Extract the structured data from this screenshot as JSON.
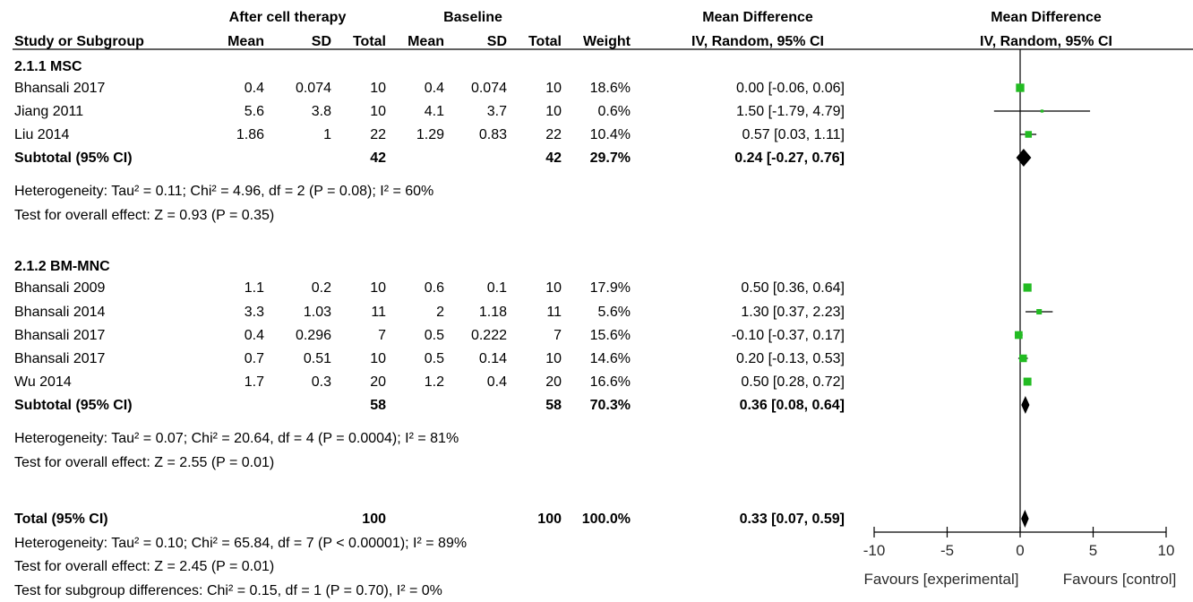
{
  "header": {
    "group1": "After cell therapy",
    "group2": "Baseline",
    "md_col": "Mean Difference",
    "plot_col": "Mean Difference",
    "study": "Study or Subgroup",
    "mean1": "Mean",
    "sd1": "SD",
    "total1": "Total",
    "mean2": "Mean",
    "sd2": "SD",
    "total2": "Total",
    "weight": "Weight",
    "method": "IV, Random, 95% CI",
    "plot_method": "IV, Random, 95% CI"
  },
  "subgroups": [
    {
      "title": "2.1.1 MSC",
      "studies": [
        {
          "name": "Bhansali 2017",
          "mean1": "0.4",
          "sd1": "0.074",
          "n1": "10",
          "mean2": "0.4",
          "sd2": "0.074",
          "n2": "10",
          "weight": "18.6%",
          "ci": "0.00 [-0.06, 0.06]"
        },
        {
          "name": "Jiang 2011",
          "mean1": "5.6",
          "sd1": "3.8",
          "n1": "10",
          "mean2": "4.1",
          "sd2": "3.7",
          "n2": "10",
          "weight": "0.6%",
          "ci": "1.50 [-1.79, 4.79]"
        },
        {
          "name": "Liu 2014",
          "mean1": "1.86",
          "sd1": "1",
          "n1": "22",
          "mean2": "1.29",
          "sd2": "0.83",
          "n2": "22",
          "weight": "10.4%",
          "ci": "0.57 [0.03, 1.11]"
        }
      ],
      "subtotal": {
        "label": "Subtotal (95% CI)",
        "n1": "42",
        "n2": "42",
        "weight": "29.7%",
        "ci": "0.24 [-0.27, 0.76]"
      },
      "heterogeneity": "Heterogeneity: Tau² = 0.11; Chi² = 4.96, df = 2 (P = 0.08); I² = 60%",
      "overall": "Test for overall effect: Z = 0.93 (P = 0.35)"
    },
    {
      "title": "2.1.2 BM-MNC",
      "studies": [
        {
          "name": "Bhansali 2009",
          "mean1": "1.1",
          "sd1": "0.2",
          "n1": "10",
          "mean2": "0.6",
          "sd2": "0.1",
          "n2": "10",
          "weight": "17.9%",
          "ci": "0.50 [0.36, 0.64]"
        },
        {
          "name": "Bhansali 2014",
          "mean1": "3.3",
          "sd1": "1.03",
          "n1": "11",
          "mean2": "2",
          "sd2": "1.18",
          "n2": "11",
          "weight": "5.6%",
          "ci": "1.30 [0.37, 2.23]"
        },
        {
          "name": "Bhansali 2017",
          "mean1": "0.4",
          "sd1": "0.296",
          "n1": "7",
          "mean2": "0.5",
          "sd2": "0.222",
          "n2": "7",
          "weight": "15.6%",
          "ci": "-0.10 [-0.37, 0.17]"
        },
        {
          "name": "Bhansali 2017",
          "mean1": "0.7",
          "sd1": "0.51",
          "n1": "10",
          "mean2": "0.5",
          "sd2": "0.14",
          "n2": "10",
          "weight": "14.6%",
          "ci": "0.20 [-0.13, 0.53]"
        },
        {
          "name": "Wu 2014",
          "mean1": "1.7",
          "sd1": "0.3",
          "n1": "20",
          "mean2": "1.2",
          "sd2": "0.4",
          "n2": "20",
          "weight": "16.6%",
          "ci": "0.50 [0.28, 0.72]"
        }
      ],
      "subtotal": {
        "label": "Subtotal (95% CI)",
        "n1": "58",
        "n2": "58",
        "weight": "70.3%",
        "ci": "0.36 [0.08, 0.64]"
      },
      "heterogeneity": "Heterogeneity: Tau² = 0.07; Chi² = 20.64, df = 4 (P = 0.0004); I² = 81%",
      "overall": "Test for overall effect: Z = 2.55 (P = 0.01)"
    }
  ],
  "total": {
    "label": "Total (95% CI)",
    "n1": "100",
    "n2": "100",
    "weight": "100.0%",
    "ci": "0.33 [0.07, 0.59]",
    "heterogeneity": "Heterogeneity: Tau² = 0.10; Chi² = 65.84, df = 7 (P < 0.00001); I² = 89%",
    "overall": "Test for overall effect: Z = 2.45 (P = 0.01)",
    "subgroup_diff": "Test for subgroup differences: Chi² = 0.15, df = 1 (P = 0.70), I² = 0%"
  },
  "axis": {
    "ticks": [
      "-10",
      "-5",
      "0",
      "5",
      "10"
    ],
    "favours_left": "Favours [experimental]",
    "favours_right": "Favours [control]"
  },
  "colors": {
    "marker": "#22bb22",
    "line": "#000000",
    "diamond": "#000000"
  },
  "chart_data": {
    "type": "scatter",
    "xlim": [
      -10,
      10
    ],
    "reference_line": 0,
    "studies": [
      {
        "name": "Bhansali 2017",
        "group": "2.1.1 MSC",
        "md": 0.0,
        "lo": -0.06,
        "hi": 0.06,
        "weight": 18.6
      },
      {
        "name": "Jiang 2011",
        "group": "2.1.1 MSC",
        "md": 1.5,
        "lo": -1.79,
        "hi": 4.79,
        "weight": 0.6
      },
      {
        "name": "Liu 2014",
        "group": "2.1.1 MSC",
        "md": 0.57,
        "lo": 0.03,
        "hi": 1.11,
        "weight": 10.4
      },
      {
        "name": "Bhansali 2009",
        "group": "2.1.2 BM-MNC",
        "md": 0.5,
        "lo": 0.36,
        "hi": 0.64,
        "weight": 17.9
      },
      {
        "name": "Bhansali 2014",
        "group": "2.1.2 BM-MNC",
        "md": 1.3,
        "lo": 0.37,
        "hi": 2.23,
        "weight": 5.6
      },
      {
        "name": "Bhansali 2017",
        "group": "2.1.2 BM-MNC",
        "md": -0.1,
        "lo": -0.37,
        "hi": 0.17,
        "weight": 15.6
      },
      {
        "name": "Bhansali 2017",
        "group": "2.1.2 BM-MNC",
        "md": 0.2,
        "lo": -0.13,
        "hi": 0.53,
        "weight": 14.6
      },
      {
        "name": "Wu 2014",
        "group": "2.1.2 BM-MNC",
        "md": 0.5,
        "lo": 0.28,
        "hi": 0.72,
        "weight": 16.6
      }
    ],
    "pooled": [
      {
        "name": "Subtotal 2.1.1 MSC",
        "md": 0.24,
        "lo": -0.27,
        "hi": 0.76
      },
      {
        "name": "Subtotal 2.1.2 BM-MNC",
        "md": 0.36,
        "lo": 0.08,
        "hi": 0.64
      },
      {
        "name": "Total",
        "md": 0.33,
        "lo": 0.07,
        "hi": 0.59
      }
    ]
  }
}
